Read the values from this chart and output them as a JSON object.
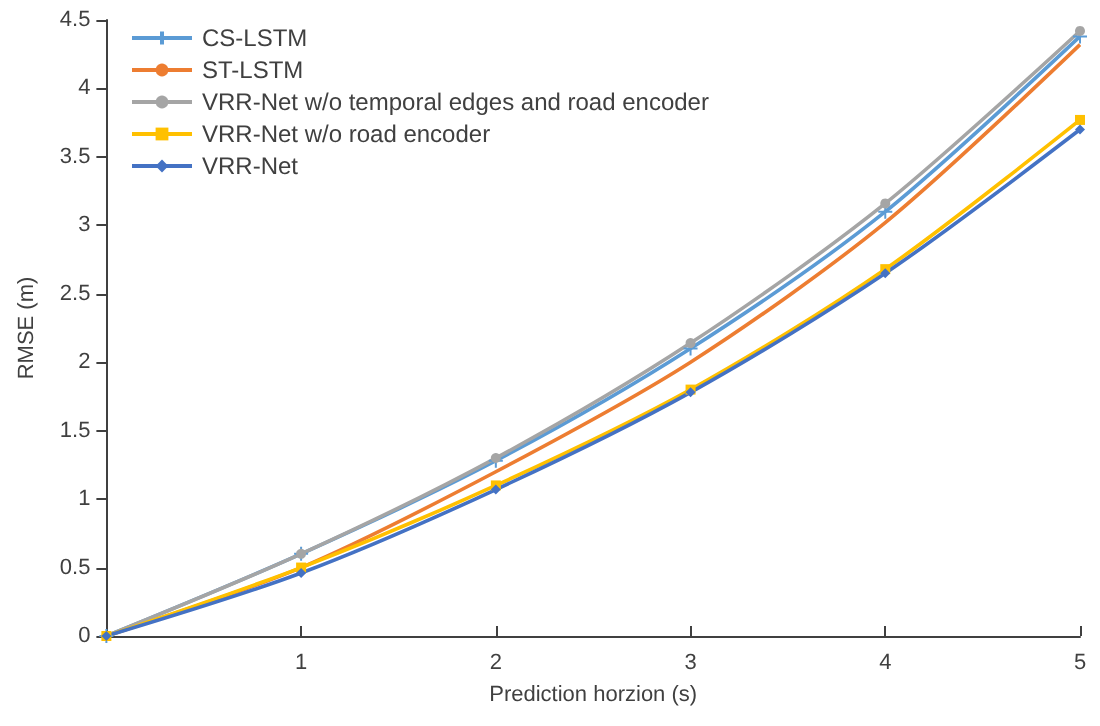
{
  "chart_data": {
    "type": "line",
    "xlabel": "Prediction horzion (s)",
    "ylabel": "RMSE (m)",
    "x": [
      0,
      1,
      2,
      3,
      4,
      5
    ],
    "xlim": [
      0,
      5
    ],
    "xticks": [
      {
        "value": 0,
        "label": null
      },
      1,
      2,
      3,
      4,
      5
    ],
    "ylim": [
      0,
      4.5
    ],
    "yticks": [
      0,
      0.5,
      1,
      1.5,
      2,
      2.5,
      3,
      3.5,
      4,
      4.5
    ],
    "grid": false,
    "legend": "top left",
    "series": [
      {
        "name": "CS-LSTM",
        "color": "#5b9bd5",
        "marker": "cross",
        "values": [
          0,
          0.6,
          1.28,
          2.1,
          3.1,
          4.38
        ]
      },
      {
        "name": "ST-LSTM",
        "color": "#ed7d31",
        "marker": "none",
        "values": [
          0,
          0.5,
          1.2,
          2.0,
          3.02,
          4.32
        ]
      },
      {
        "name": "VRR-Net w/o temporal edges and road encoder",
        "color": "#a5a5a5",
        "marker": "circle",
        "values": [
          0,
          0.6,
          1.3,
          2.14,
          3.16,
          4.42
        ]
      },
      {
        "name": "VRR-Net w/o road encoder",
        "color": "#ffc000",
        "marker": "square",
        "values": [
          0,
          0.5,
          1.1,
          1.8,
          2.68,
          3.77
        ]
      },
      {
        "name": "VRR-Net",
        "color": "#4472c4",
        "marker": "diamond",
        "values": [
          0,
          0.46,
          1.07,
          1.78,
          2.65,
          3.7
        ]
      }
    ]
  }
}
